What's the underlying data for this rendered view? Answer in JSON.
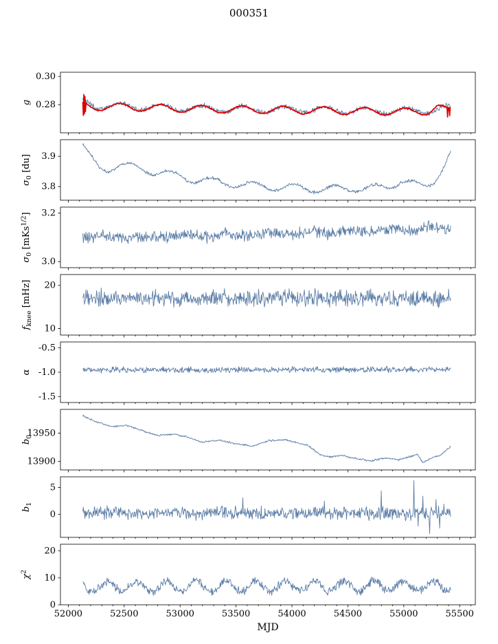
{
  "chart_data": {
    "type": "line",
    "title": "000351",
    "xlabel": "MJD",
    "legend": "none",
    "grid": false,
    "xlim": [
      51930,
      55640
    ],
    "xticks": [
      52000,
      52500,
      53000,
      53500,
      54000,
      54500,
      55000,
      55500
    ],
    "x_minor_step": 100,
    "x_range_data": [
      52130,
      55420
    ],
    "colors": {
      "line_blue": "#5a7ca6",
      "fit_red": "#dd0000",
      "axis": "#000000"
    },
    "panels": [
      {
        "name": "g",
        "ylabel_segments": [
          {
            "t": "g",
            "italic": true
          }
        ],
        "ylim": [
          0.26,
          0.303
        ],
        "ytick_values": [
          0.28,
          0.3
        ],
        "ytick_labels": [
          "0.28",
          "0.30"
        ],
        "series": [
          {
            "name": "g-measured",
            "color": "#5a7ca6",
            "lw": 0.9,
            "noise": 0.0012,
            "osc": {
              "period": 365,
              "amp": 0.0022,
              "peak": 52470
            },
            "anchors": [
              [
                52130,
                0.2815
              ],
              [
                52250,
                0.2792
              ],
              [
                52500,
                0.2788
              ],
              [
                52800,
                0.278
              ],
              [
                53100,
                0.2773
              ],
              [
                53400,
                0.277
              ],
              [
                53700,
                0.2768
              ],
              [
                54000,
                0.2766
              ],
              [
                54300,
                0.2762
              ],
              [
                54600,
                0.2758
              ],
              [
                54900,
                0.2755
              ],
              [
                55100,
                0.2752
              ],
              [
                55250,
                0.2758
              ],
              [
                55350,
                0.2775
              ],
              [
                55420,
                0.277
              ]
            ]
          },
          {
            "name": "g-fit",
            "color": "#dd0000",
            "lw": 1.7,
            "noise": 0.0003,
            "osc": {
              "period": 365,
              "amp": 0.0026,
              "peak": 52460
            },
            "anchors": [
              [
                52130,
                0.28
              ],
              [
                52250,
                0.2785
              ],
              [
                52500,
                0.2783
              ],
              [
                52800,
                0.2776
              ],
              [
                53100,
                0.277
              ],
              [
                53400,
                0.2766
              ],
              [
                53700,
                0.2764
              ],
              [
                54000,
                0.2762
              ],
              [
                54300,
                0.2758
              ],
              [
                54600,
                0.2754
              ],
              [
                54900,
                0.2752
              ],
              [
                55100,
                0.2748
              ],
              [
                55200,
                0.2752
              ],
              [
                55300,
                0.279
              ],
              [
                55350,
                0.2768
              ],
              [
                55390,
                0.2752
              ],
              [
                55420,
                0.2758
              ]
            ],
            "spikes": [
              [
                52133,
                0.2888
              ],
              [
                52137,
                0.2723
              ],
              [
                52141,
                0.2872
              ],
              [
                52145,
                0.2735
              ],
              [
                52149,
                0.2858
              ],
              [
                52153,
                0.275
              ],
              [
                55392,
                0.2712
              ],
              [
                55402,
                0.276
              ],
              [
                55410,
                0.2722
              ]
            ]
          }
        ]
      },
      {
        "name": "sigma0-du",
        "ylabel_segments": [
          {
            "t": "σ",
            "italic": true
          },
          {
            "t": "0",
            "style": "sub"
          },
          {
            "t": " [du]"
          }
        ],
        "ylim": [
          3.755,
          3.955
        ],
        "ytick_values": [
          3.8,
          3.9
        ],
        "ytick_labels": [
          "3.8",
          "3.9"
        ],
        "series": [
          {
            "name": "sigma0-du",
            "color": "#5a7ca6",
            "lw": 0.9,
            "noise": 0.0035,
            "osc": {
              "period": 365,
              "amp": 0.012,
              "peak": 52560
            },
            "anchors": [
              [
                52130,
                3.933
              ],
              [
                52200,
                3.895
              ],
              [
                52270,
                3.862
              ],
              [
                52350,
                3.857
              ],
              [
                52450,
                3.872
              ],
              [
                52600,
                3.862
              ],
              [
                52850,
                3.845
              ],
              [
                53100,
                3.826
              ],
              [
                53400,
                3.812
              ],
              [
                53700,
                3.802
              ],
              [
                54000,
                3.796
              ],
              [
                54300,
                3.792
              ],
              [
                54600,
                3.794
              ],
              [
                54850,
                3.796
              ],
              [
                54980,
                3.822
              ],
              [
                55080,
                3.81
              ],
              [
                55180,
                3.796
              ],
              [
                55260,
                3.815
              ],
              [
                55330,
                3.852
              ],
              [
                55380,
                3.885
              ],
              [
                55420,
                3.912
              ]
            ]
          }
        ]
      },
      {
        "name": "sigma0-mks",
        "ylabel_segments": [
          {
            "t": "σ",
            "italic": true
          },
          {
            "t": "0",
            "style": "sub"
          },
          {
            "t": " [mKs"
          },
          {
            "t": "1/2",
            "style": "sup"
          },
          {
            "t": "]"
          }
        ],
        "ylim": [
          2.975,
          3.225
        ],
        "ytick_values": [
          3.0,
          3.2
        ],
        "ytick_labels": [
          "3.0",
          "3.2"
        ],
        "series": [
          {
            "name": "sigma0-mks",
            "color": "#5a7ca6",
            "lw": 0.9,
            "noise": 0.016,
            "osc": {
              "period": 365,
              "amp": 0.006,
              "peak": 52700
            },
            "anchors": [
              [
                52130,
                3.108
              ],
              [
                52500,
                3.098
              ],
              [
                52900,
                3.106
              ],
              [
                53300,
                3.108
              ],
              [
                53700,
                3.112
              ],
              [
                54100,
                3.118
              ],
              [
                54500,
                3.124
              ],
              [
                54900,
                3.13
              ],
              [
                55200,
                3.136
              ],
              [
                55420,
                3.138
              ]
            ]
          }
        ]
      },
      {
        "name": "f-knee",
        "ylabel_segments": [
          {
            "t": "f",
            "italic": true
          },
          {
            "t": "knee",
            "style": "sub"
          },
          {
            "t": " [mHz]"
          }
        ],
        "ylim": [
          8.5,
          22.5
        ],
        "ytick_values": [
          10,
          20
        ],
        "ytick_labels": [
          "10",
          "20"
        ],
        "series": [
          {
            "name": "f-knee",
            "color": "#5a7ca6",
            "lw": 0.9,
            "noise": 1.3,
            "anchors": [
              [
                52130,
                17.3
              ],
              [
                53000,
                17.0
              ],
              [
                54000,
                17.1
              ],
              [
                55420,
                16.9
              ]
            ]
          }
        ]
      },
      {
        "name": "alpha",
        "ylabel_segments": [
          {
            "t": "α",
            "italic": true
          }
        ],
        "ylim": [
          -1.62,
          -0.38
        ],
        "ytick_values": [
          -0.5,
          -1.0,
          -1.5
        ],
        "ytick_labels": [
          "-0.5",
          "-1.0",
          "-1.5"
        ],
        "series": [
          {
            "name": "alpha",
            "color": "#5a7ca6",
            "lw": 0.9,
            "noise": 0.04,
            "anchors": [
              [
                52130,
                -0.955
              ],
              [
                55420,
                -0.945
              ]
            ]
          }
        ]
      },
      {
        "name": "b0",
        "ylabel_segments": [
          {
            "t": "b",
            "italic": true
          },
          {
            "t": "0",
            "style": "sub"
          }
        ],
        "ylim": [
          13885,
          13992
        ],
        "ytick_values": [
          13900,
          13950
        ],
        "ytick_labels": [
          "13900",
          "13950"
        ],
        "series": [
          {
            "name": "b0",
            "color": "#5a7ca6",
            "lw": 0.9,
            "noise": 1.1,
            "anchors": [
              [
                52130,
                13981
              ],
              [
                52250,
                13970
              ],
              [
                52400,
                13961
              ],
              [
                52520,
                13964
              ],
              [
                52650,
                13955
              ],
              [
                52800,
                13946
              ],
              [
                52950,
                13948
              ],
              [
                53050,
                13944
              ],
              [
                53200,
                13934
              ],
              [
                53350,
                13938
              ],
              [
                53500,
                13931
              ],
              [
                53650,
                13927
              ],
              [
                53800,
                13937
              ],
              [
                53950,
                13938
              ],
              [
                54050,
                13933
              ],
              [
                54150,
                13928
              ],
              [
                54250,
                13912
              ],
              [
                54350,
                13908
              ],
              [
                54450,
                13911
              ],
              [
                54550,
                13906
              ],
              [
                54700,
                13901
              ],
              [
                54850,
                13906
              ],
              [
                54950,
                13903
              ],
              [
                55050,
                13908
              ],
              [
                55120,
                13913
              ],
              [
                55170,
                13898
              ],
              [
                55250,
                13906
              ],
              [
                55320,
                13910
              ],
              [
                55420,
                13927
              ]
            ]
          }
        ]
      },
      {
        "name": "b1",
        "ylabel_segments": [
          {
            "t": "b",
            "italic": true
          },
          {
            "t": "1",
            "style": "sub"
          }
        ],
        "ylim": [
          -4.3,
          7.0
        ],
        "ytick_values": [
          0,
          5
        ],
        "ytick_labels": [
          "0",
          "5"
        ],
        "series": [
          {
            "name": "b1",
            "color": "#5a7ca6",
            "lw": 0.9,
            "noise": 0.8,
            "anchors": [
              [
                52130,
                0.3
              ],
              [
                55420,
                0.1
              ]
            ],
            "spikes": [
              [
                53560,
                3.1
              ],
              [
                54290,
                2.5
              ],
              [
                54800,
                4.4
              ],
              [
                55090,
                6.3
              ],
              [
                55130,
                -2.2
              ],
              [
                55170,
                3.4
              ],
              [
                55230,
                -3.6
              ],
              [
                55290,
                2.8
              ],
              [
                55320,
                -2.6
              ],
              [
                55360,
                1.9
              ]
            ]
          }
        ]
      },
      {
        "name": "chi2",
        "ylabel_segments": [
          {
            "t": "χ",
            "italic": true
          },
          {
            "t": "2",
            "style": "sup"
          }
        ],
        "ylim": [
          0,
          22.5
        ],
        "ytick_values": [
          0,
          10,
          20
        ],
        "ytick_labels": [
          "0",
          "10",
          "20"
        ],
        "series": [
          {
            "name": "chi2",
            "color": "#5a7ca6",
            "lw": 0.9,
            "noise": 1.05,
            "osc": {
              "period": 265,
              "amp": 1.9,
              "peak": 52350
            },
            "anchors": [
              [
                52130,
                6.8
              ],
              [
                55420,
                7.0
              ]
            ]
          }
        ]
      }
    ]
  }
}
